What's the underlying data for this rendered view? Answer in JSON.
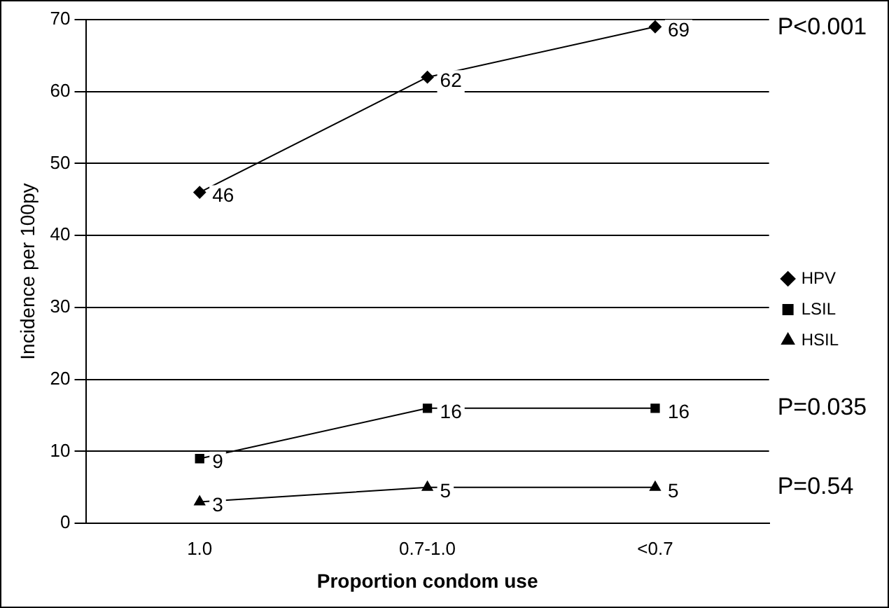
{
  "chart_data": {
    "type": "line",
    "xlabel": "Proportion condom use",
    "ylabel": "Incidence per 100py",
    "categories": [
      "1.0",
      "0.7-1.0",
      "<0.7"
    ],
    "series": [
      {
        "name": "HPV",
        "color": "#000000",
        "marker": "diamond",
        "values": [
          46,
          62,
          69
        ]
      },
      {
        "name": "LSIL",
        "color": "#000000",
        "marker": "square",
        "values": [
          9,
          16,
          16
        ]
      },
      {
        "name": "HSIL",
        "color": "#000000",
        "marker": "triangle",
        "values": [
          3,
          5,
          5
        ]
      }
    ],
    "ylim": [
      0,
      70
    ],
    "yticks": [
      0,
      10,
      20,
      30,
      40,
      50,
      60,
      70
    ],
    "grid": "y",
    "legend": "right",
    "data_labels": true,
    "annotations": [
      "P<0.001",
      "P=0.035",
      "P=0.54"
    ]
  }
}
